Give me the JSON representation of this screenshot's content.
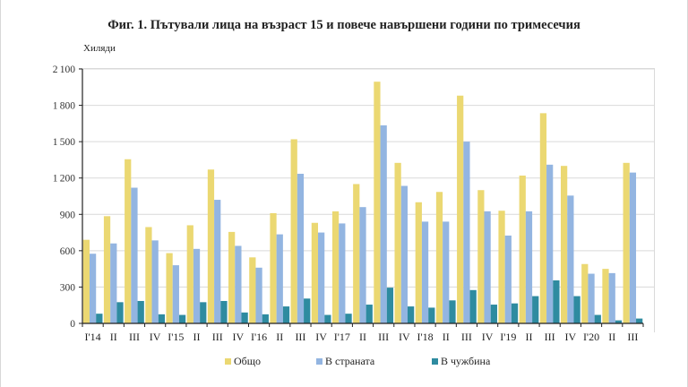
{
  "title": "Фиг. 1. Пътували лица на възраст 15 и повече навършени години по тримесечия",
  "y_unit_label": "Хиляди",
  "colors": {
    "total": "#EBD872",
    "domestic": "#93B5E1",
    "abroad": "#2E8BA0",
    "grid": "#d9d9d9",
    "axis": "#222222"
  },
  "legend": [
    {
      "label": "Общо",
      "color": "#EBD872"
    },
    {
      "label": "В страната",
      "color": "#93B5E1"
    },
    {
      "label": "В чужбина",
      "color": "#2E8BA0"
    }
  ],
  "chart_data": {
    "type": "bar",
    "title": "Фиг. 1. Пътували лица на възраст 15 и повече навършени години по тримесечия",
    "xlabel": "",
    "ylabel": "Хиляди",
    "ylim": [
      0,
      2100
    ],
    "yticks": [
      0,
      300,
      600,
      900,
      1200,
      1500,
      1800,
      2100
    ],
    "grid": true,
    "legend_position": "bottom",
    "categories": [
      "I '14",
      "II",
      "III",
      "IV",
      "I '15",
      "II",
      "III",
      "IV",
      "I '16",
      "II",
      "III",
      "IV",
      "I '17",
      "II",
      "III",
      "IV",
      "I '18",
      "II",
      "III",
      "IV",
      "I '19",
      "II",
      "III",
      "IV",
      "I '20",
      "II",
      "III"
    ],
    "series": [
      {
        "name": "Общо",
        "values": [
          690,
          885,
          1355,
          795,
          580,
          810,
          1270,
          755,
          545,
          910,
          1520,
          830,
          925,
          1150,
          1995,
          1325,
          1000,
          1085,
          1880,
          1100,
          930,
          1220,
          1735,
          1300,
          490,
          450,
          1325
        ]
      },
      {
        "name": "В страната",
        "values": [
          575,
          660,
          1120,
          685,
          480,
          615,
          1020,
          640,
          460,
          735,
          1235,
          750,
          825,
          960,
          1635,
          1135,
          840,
          840,
          1500,
          925,
          725,
          925,
          1310,
          1055,
          410,
          415,
          1245
        ]
      },
      {
        "name": "В чужбина",
        "values": [
          80,
          175,
          185,
          75,
          70,
          175,
          185,
          90,
          75,
          140,
          205,
          70,
          80,
          155,
          295,
          140,
          130,
          190,
          275,
          155,
          165,
          225,
          355,
          225,
          70,
          25,
          40
        ]
      }
    ]
  }
}
